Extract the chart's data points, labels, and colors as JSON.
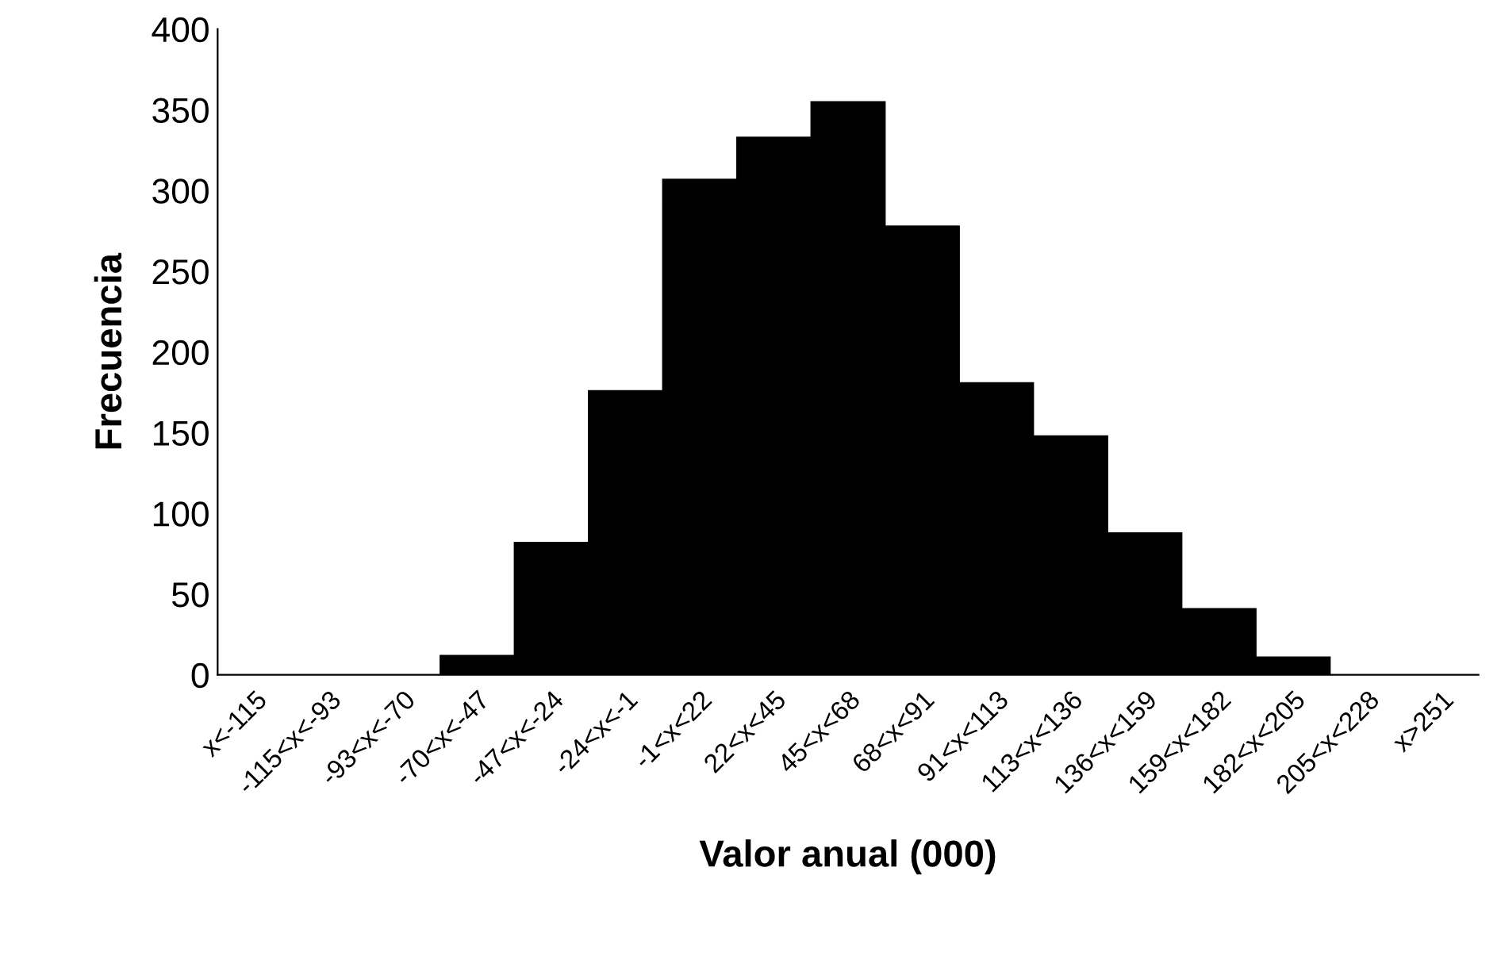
{
  "chart_data": {
    "type": "bar",
    "xlabel": "Valor anual (000)",
    "ylabel": "Frecuencia",
    "categories": [
      "x<-115",
      "-115<x<-93",
      "-93<x<-70",
      "-70<x<-47",
      "-47<x<-24",
      "-24<x<-1",
      "-1<x<22",
      "22<x<45",
      "45<x<68",
      "68<x<91",
      "91<x<113",
      "113<x<136",
      "136<x<159",
      "159<x<182",
      "182<x<205",
      "205<x<228",
      "x>251"
    ],
    "values": [
      0,
      0,
      0,
      12,
      82,
      176,
      307,
      333,
      355,
      278,
      181,
      148,
      88,
      41,
      11,
      0,
      0
    ],
    "color": "#000000",
    "ylim": [
      0,
      400
    ],
    "yticks": [
      0,
      50,
      100,
      150,
      200,
      250,
      300,
      350,
      400
    ],
    "grid": false
  }
}
